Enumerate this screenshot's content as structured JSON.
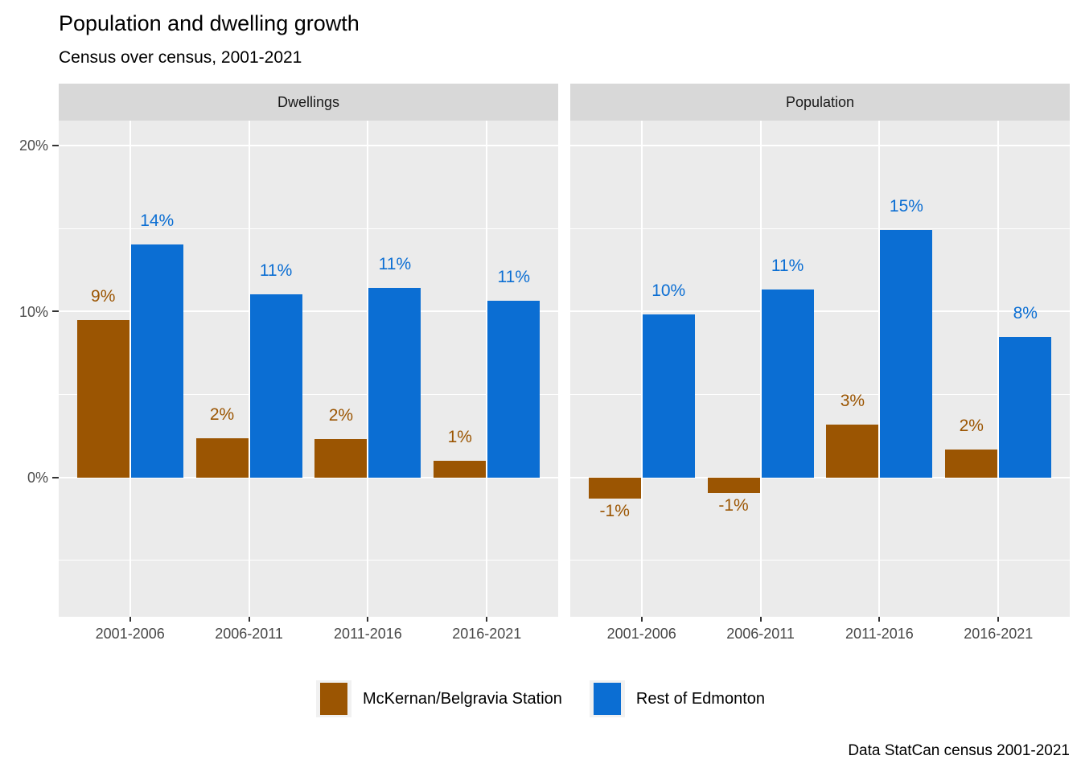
{
  "header": {
    "title": "Population and dwelling growth",
    "subtitle": "Census over census, 2001-2021"
  },
  "caption": "Data StatCan census 2001-2021",
  "axes": {
    "y_tick_labels": [
      "20%",
      "10%",
      "0%"
    ],
    "y_tick_values": [
      20,
      10,
      0
    ]
  },
  "legend": {
    "items": [
      {
        "label": "McKernan/Belgravia Station",
        "color": "#9b5502"
      },
      {
        "label": "Rest of Edmonton",
        "color": "#0b6ed3"
      }
    ]
  },
  "style": {
    "panel_bg": "#ebebeb",
    "strip_bg": "#d8d8d8",
    "grid_color": "#ffffff",
    "axis_text_color": "#4d4d4d",
    "tick_color": "#333333"
  },
  "chart_data": {
    "type": "bar",
    "title": "Population and dwelling growth",
    "subtitle": "Census over census, 2001-2021",
    "caption": "Data StatCan census 2001-2021",
    "categories": [
      "2001-2006",
      "2006-2011",
      "2011-2016",
      "2016-2021"
    ],
    "ylabel": "",
    "xlabel": "",
    "ylim": [
      -8.4,
      21.5
    ],
    "y_major_gridlines": [
      20,
      10,
      0
    ],
    "y_minor_gridlines": [
      15,
      5,
      -5
    ],
    "grid": "on",
    "legend_position": "bottom",
    "facets": [
      {
        "name": "Dwellings",
        "series": [
          {
            "name": "McKernan/Belgravia Station",
            "color": "#9b5502",
            "values": [
              9.5,
              2.35,
              2.3,
              1.0
            ],
            "labels": [
              "9%",
              "2%",
              "2%",
              "1%"
            ]
          },
          {
            "name": "Rest of Edmonton",
            "color": "#0b6ed3",
            "values": [
              14.05,
              11.05,
              11.4,
              10.65
            ],
            "labels": [
              "14%",
              "11%",
              "11%",
              "11%"
            ]
          }
        ]
      },
      {
        "name": "Population",
        "series": [
          {
            "name": "McKernan/Belgravia Station",
            "color": "#9b5502",
            "values": [
              -1.3,
              -0.95,
              3.2,
              1.67
            ],
            "labels": [
              "-1%",
              "-1%",
              "3%",
              "2%"
            ]
          },
          {
            "name": "Rest of Edmonton",
            "color": "#0b6ed3",
            "values": [
              9.8,
              11.3,
              14.9,
              8.45
            ],
            "labels": [
              "10%",
              "11%",
              "15%",
              "8%"
            ]
          }
        ]
      }
    ]
  }
}
